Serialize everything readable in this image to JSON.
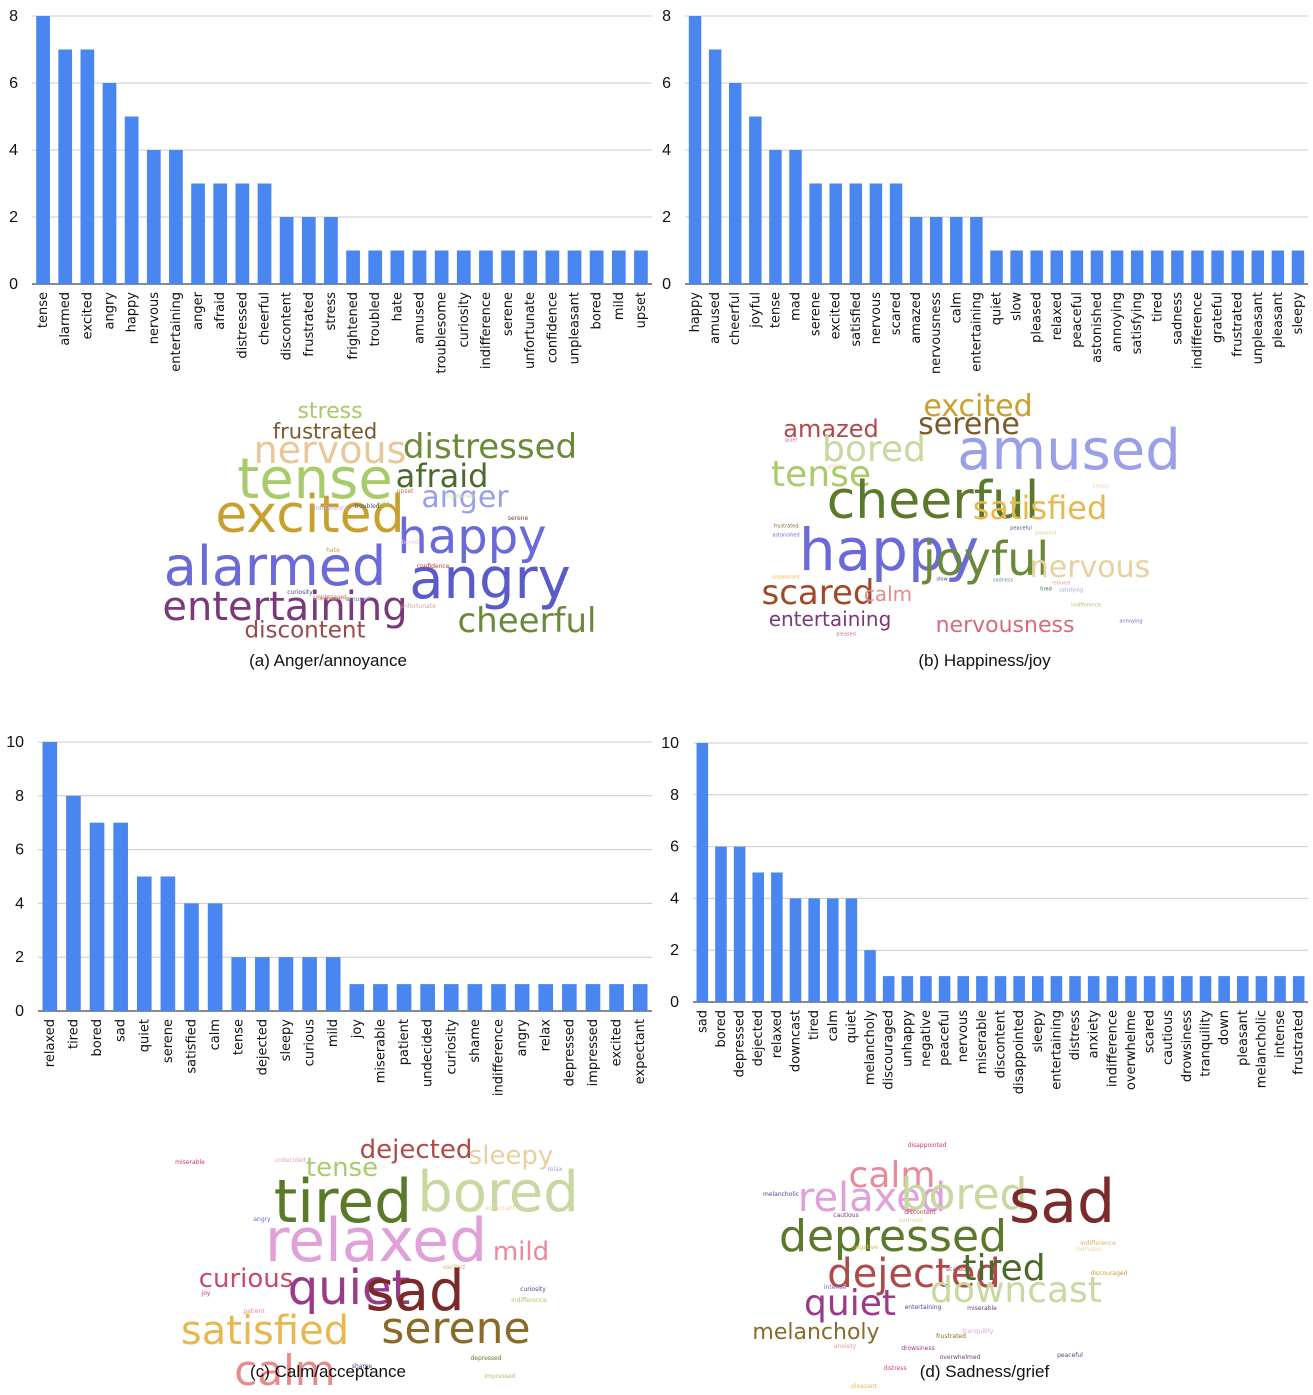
{
  "chart_data": [
    {
      "type": "bar",
      "caption": "(a) Anger/annoyance",
      "ylim": [
        0,
        8
      ],
      "yticks": [
        0,
        2,
        4,
        6,
        8
      ],
      "grid": true,
      "bar_color": "#4A86F0",
      "categories": [
        "tense",
        "alarmed",
        "excited",
        "angry",
        "happy",
        "nervous",
        "entertaining",
        "anger",
        "afraid",
        "distressed",
        "cheerful",
        "discontent",
        "frustrated",
        "stress",
        "frightened",
        "troubled",
        "hate",
        "amused",
        "troublesome",
        "curiosity",
        "indifference",
        "serene",
        "unfortunate",
        "confidence",
        "unpleasant",
        "bored",
        "mild",
        "upset"
      ],
      "values": [
        8,
        7,
        7,
        6,
        5,
        4,
        4,
        3,
        3,
        3,
        3,
        2,
        2,
        2,
        1,
        1,
        1,
        1,
        1,
        1,
        1,
        1,
        1,
        1,
        1,
        1,
        1,
        1
      ],
      "wordcloud": [
        {
          "t": "stress",
          "c": "#a8c86a"
        },
        {
          "t": "frustrated",
          "c": "#7a5a2a"
        },
        {
          "t": "nervous",
          "c": "#e8c89a"
        },
        {
          "t": "distressed",
          "c": "#6a8a3a"
        },
        {
          "t": "tense",
          "c": "#a8cc6a"
        },
        {
          "t": "afraid",
          "c": "#4a6a2a"
        },
        {
          "t": "anger",
          "c": "#9aa0e8"
        },
        {
          "t": "excited",
          "c": "#c8a030"
        },
        {
          "t": "happy",
          "c": "#6a6ad8"
        },
        {
          "t": "alarmed",
          "c": "#6a6ad8"
        },
        {
          "t": "angry",
          "c": "#5a5ac8"
        },
        {
          "t": "entertaining",
          "c": "#7a3a7a"
        },
        {
          "t": "cheerful",
          "c": "#6a8a3a"
        },
        {
          "t": "discontent",
          "c": "#9a4a4a"
        },
        {
          "t": "upset",
          "c": "#c86a6a"
        },
        {
          "t": "indifference",
          "c": "#c8a0d8"
        },
        {
          "t": "mild",
          "c": "#a8c86a"
        },
        {
          "t": "troubled",
          "c": "#4a4a8a"
        },
        {
          "t": "serene",
          "c": "#7a3a3a"
        },
        {
          "t": "frightened",
          "c": "#c8e0a0"
        },
        {
          "t": "hate",
          "c": "#c8a030"
        },
        {
          "t": "bored",
          "c": "#e8c8f0"
        },
        {
          "t": "confidence",
          "c": "#c83a3a"
        },
        {
          "t": "curiosity",
          "c": "#4a4a8a"
        },
        {
          "t": "amused",
          "c": "#6a6ad8"
        },
        {
          "t": "unpleasant",
          "c": "#c86a9a"
        },
        {
          "t": "troublesome",
          "c": "#d8b06a"
        },
        {
          "t": "unfortunate",
          "c": "#e0a0a0"
        }
      ]
    },
    {
      "type": "bar",
      "caption": "(b) Happiness/joy",
      "ylim": [
        0,
        8
      ],
      "yticks": [
        0,
        2,
        4,
        6,
        8
      ],
      "grid": true,
      "bar_color": "#4A86F0",
      "categories": [
        "happy",
        "amused",
        "cheerful",
        "joyful",
        "tense",
        "mad",
        "serene",
        "excited",
        "satisfied",
        "nervous",
        "scared",
        "amazed",
        "nervousness",
        "calm",
        "entertaining",
        "quiet",
        "slow",
        "pleased",
        "relaxed",
        "peaceful",
        "astonished",
        "annoying",
        "satisfying",
        "tired",
        "sadness",
        "indifference",
        "grateful",
        "frustrated",
        "unpleasant",
        "pleasant",
        "sleepy"
      ],
      "values": [
        8,
        7,
        6,
        5,
        4,
        4,
        3,
        3,
        3,
        3,
        3,
        2,
        2,
        2,
        2,
        1,
        1,
        1,
        1,
        1,
        1,
        1,
        1,
        1,
        1,
        1,
        1,
        1,
        1,
        1,
        1
      ],
      "wordcloud": [
        {
          "t": "excited",
          "c": "#c8a030"
        },
        {
          "t": "amazed",
          "c": "#b04a4a"
        },
        {
          "t": "serene",
          "c": "#7a5a2a"
        },
        {
          "t": "bored",
          "c": "#c8d8a0"
        },
        {
          "t": "amused",
          "c": "#9aa0e8"
        },
        {
          "t": "tense",
          "c": "#a8cc6a"
        },
        {
          "t": "quiet",
          "c": "#c86a9a"
        },
        {
          "t": "grateful",
          "c": "#e8d0b0"
        },
        {
          "t": "sleepy",
          "c": "#e8d0b0"
        },
        {
          "t": "cheerful",
          "c": "#5a7a2a"
        },
        {
          "t": "satisfied",
          "c": "#e8b850"
        },
        {
          "t": "frustrated",
          "c": "#8a6a2a"
        },
        {
          "t": "astonished",
          "c": "#6a6ad8"
        },
        {
          "t": "peaceful",
          "c": "#4a4a8a"
        },
        {
          "t": "pleasant",
          "c": "#e8c89a"
        },
        {
          "t": "happy",
          "c": "#6a6ad8"
        },
        {
          "t": "joyful",
          "c": "#6a8a3a"
        },
        {
          "t": "nervous",
          "c": "#e8d0a0"
        },
        {
          "t": "unpleasant",
          "c": "#e8b850"
        },
        {
          "t": "slow",
          "c": "#4a4a8a"
        },
        {
          "t": "sadness",
          "c": "#6a8a9a"
        },
        {
          "t": "relaxed",
          "c": "#e8a0a0"
        },
        {
          "t": "satisfying",
          "c": "#9aa0e8"
        },
        {
          "t": "tired",
          "c": "#4a6a2a"
        },
        {
          "t": "indifference",
          "c": "#a8c86a"
        },
        {
          "t": "scared",
          "c": "#a04a2a"
        },
        {
          "t": "calm",
          "c": "#e88a8a"
        },
        {
          "t": "entertaining",
          "c": "#7a3a7a"
        },
        {
          "t": "nervousness",
          "c": "#d86a7a"
        },
        {
          "t": "pleased",
          "c": "#c86a9a"
        },
        {
          "t": "annoying",
          "c": "#6a6ad8"
        }
      ]
    },
    {
      "type": "bar",
      "caption": "(c) Calm/acceptance",
      "ylim": [
        0,
        10
      ],
      "yticks": [
        0,
        2,
        4,
        6,
        8,
        10
      ],
      "grid": true,
      "bar_color": "#4A86F0",
      "categories": [
        "relaxed",
        "tired",
        "bored",
        "sad",
        "quiet",
        "serene",
        "satisfied",
        "calm",
        "tense",
        "dejected",
        "sleepy",
        "curious",
        "mild",
        "joy",
        "miserable",
        "patient",
        "undecided",
        "curiosity",
        "shame",
        "indifference",
        "angry",
        "relax",
        "depressed",
        "impressed",
        "excited",
        "expectant"
      ],
      "values": [
        10,
        8,
        7,
        7,
        5,
        5,
        4,
        4,
        2,
        2,
        2,
        2,
        2,
        1,
        1,
        1,
        1,
        1,
        1,
        1,
        1,
        1,
        1,
        1,
        1,
        1
      ],
      "wordcloud": [
        {
          "t": "miserable",
          "c": "#c83a5a"
        },
        {
          "t": "undecided",
          "c": "#e8a0c8"
        },
        {
          "t": "dejected",
          "c": "#b04a4a"
        },
        {
          "t": "tense",
          "c": "#a8cc6a"
        },
        {
          "t": "sleepy",
          "c": "#e8d0a0"
        },
        {
          "t": "relax",
          "c": "#9aa0e8"
        },
        {
          "t": "tired",
          "c": "#5a7a2a"
        },
        {
          "t": "bored",
          "c": "#c8d8a0"
        },
        {
          "t": "expectant",
          "c": "#e8d0b0"
        },
        {
          "t": "angry",
          "c": "#6a6ad8"
        },
        {
          "t": "relaxed",
          "c": "#e0a0d8"
        },
        {
          "t": "mild",
          "c": "#e88a9a"
        },
        {
          "t": "curious",
          "c": "#c84a6a"
        },
        {
          "t": "excited",
          "c": "#d8b06a"
        },
        {
          "t": "quiet",
          "c": "#9a3a8a"
        },
        {
          "t": "sad",
          "c": "#7a2a2a"
        },
        {
          "t": "curiosity",
          "c": "#4a4a8a"
        },
        {
          "t": "indifference",
          "c": "#a8c86a"
        },
        {
          "t": "joy",
          "c": "#c83a5a"
        },
        {
          "t": "patient",
          "c": "#e88a9a"
        },
        {
          "t": "satisfied",
          "c": "#e8b850"
        },
        {
          "t": "serene",
          "c": "#8a6a2a"
        },
        {
          "t": "shame",
          "c": "#4a4a8a"
        },
        {
          "t": "depressed",
          "c": "#5a7a2a"
        },
        {
          "t": "calm",
          "c": "#e88a8a"
        },
        {
          "t": "impressed",
          "c": "#a8c86a"
        }
      ]
    },
    {
      "type": "bar",
      "caption": "(d) Sadness/grief",
      "ylim": [
        0,
        10
      ],
      "yticks": [
        0,
        2,
        4,
        6,
        8,
        10
      ],
      "grid": true,
      "bar_color": "#4A86F0",
      "categories": [
        "sad",
        "bored",
        "depressed",
        "dejected",
        "relaxed",
        "downcast",
        "tired",
        "calm",
        "quiet",
        "melancholy",
        "discouraged",
        "unhappy",
        "negative",
        "peaceful",
        "nervous",
        "miserable",
        "discontent",
        "disappointed",
        "sleepy",
        "entertaining",
        "distress",
        "anxiety",
        "indifference",
        "overwhelme",
        "scared",
        "cautious",
        "drowsiness",
        "tranquility",
        "down",
        "pleasant",
        "melancholic",
        "intense",
        "frustrated"
      ],
      "values": [
        10,
        6,
        6,
        5,
        5,
        4,
        4,
        4,
        4,
        2,
        1,
        1,
        1,
        1,
        1,
        1,
        1,
        1,
        1,
        1,
        1,
        1,
        1,
        1,
        1,
        1,
        1,
        1,
        1,
        1,
        1,
        1,
        1
      ],
      "wordcloud": [
        {
          "t": "disappointed",
          "c": "#c83a5a"
        },
        {
          "t": "calm",
          "c": "#e88a9a"
        },
        {
          "t": "melancholic",
          "c": "#4a4a8a"
        },
        {
          "t": "relaxed",
          "c": "#e0a0d8"
        },
        {
          "t": "bored",
          "c": "#c8d8a0"
        },
        {
          "t": "cautious",
          "c": "#7a3a7a"
        },
        {
          "t": "discontent",
          "c": "#b04a4a"
        },
        {
          "t": "sadness",
          "c": "#e8d0a0"
        },
        {
          "t": "depressed",
          "c": "#5a7a2a"
        },
        {
          "t": "sad",
          "c": "#7a2a2a"
        },
        {
          "t": "indifference",
          "c": "#d8b06a"
        },
        {
          "t": "nervous",
          "c": "#e8d0a0"
        },
        {
          "t": "negative",
          "c": "#e8b850"
        },
        {
          "t": "dejected",
          "c": "#b04a4a"
        },
        {
          "t": "scared",
          "c": "#b04a4a"
        },
        {
          "t": "tired",
          "c": "#4a6a2a"
        },
        {
          "t": "intense",
          "c": "#6a6ad8"
        },
        {
          "t": "discouraged",
          "c": "#c8a030"
        },
        {
          "t": "quiet",
          "c": "#9a3a8a"
        },
        {
          "t": "downcast",
          "c": "#c8d8a0"
        },
        {
          "t": "entertaining",
          "c": "#4a4a8a"
        },
        {
          "t": "miserable",
          "c": "#7a3a7a"
        },
        {
          "t": "melancholy",
          "c": "#8a6a2a"
        },
        {
          "t": "tranquility",
          "c": "#e0a0d8"
        },
        {
          "t": "frustrated",
          "c": "#8a6a2a"
        },
        {
          "t": "anxiety",
          "c": "#e8a0a0"
        },
        {
          "t": "drowsiness",
          "c": "#9a3a8a"
        },
        {
          "t": "overwhelmed",
          "c": "#7a3a7a"
        },
        {
          "t": "peaceful",
          "c": "#4a4a8a"
        },
        {
          "t": "distress",
          "c": "#c84a6a"
        },
        {
          "t": "pleasant",
          "c": "#e8b850"
        }
      ]
    }
  ]
}
